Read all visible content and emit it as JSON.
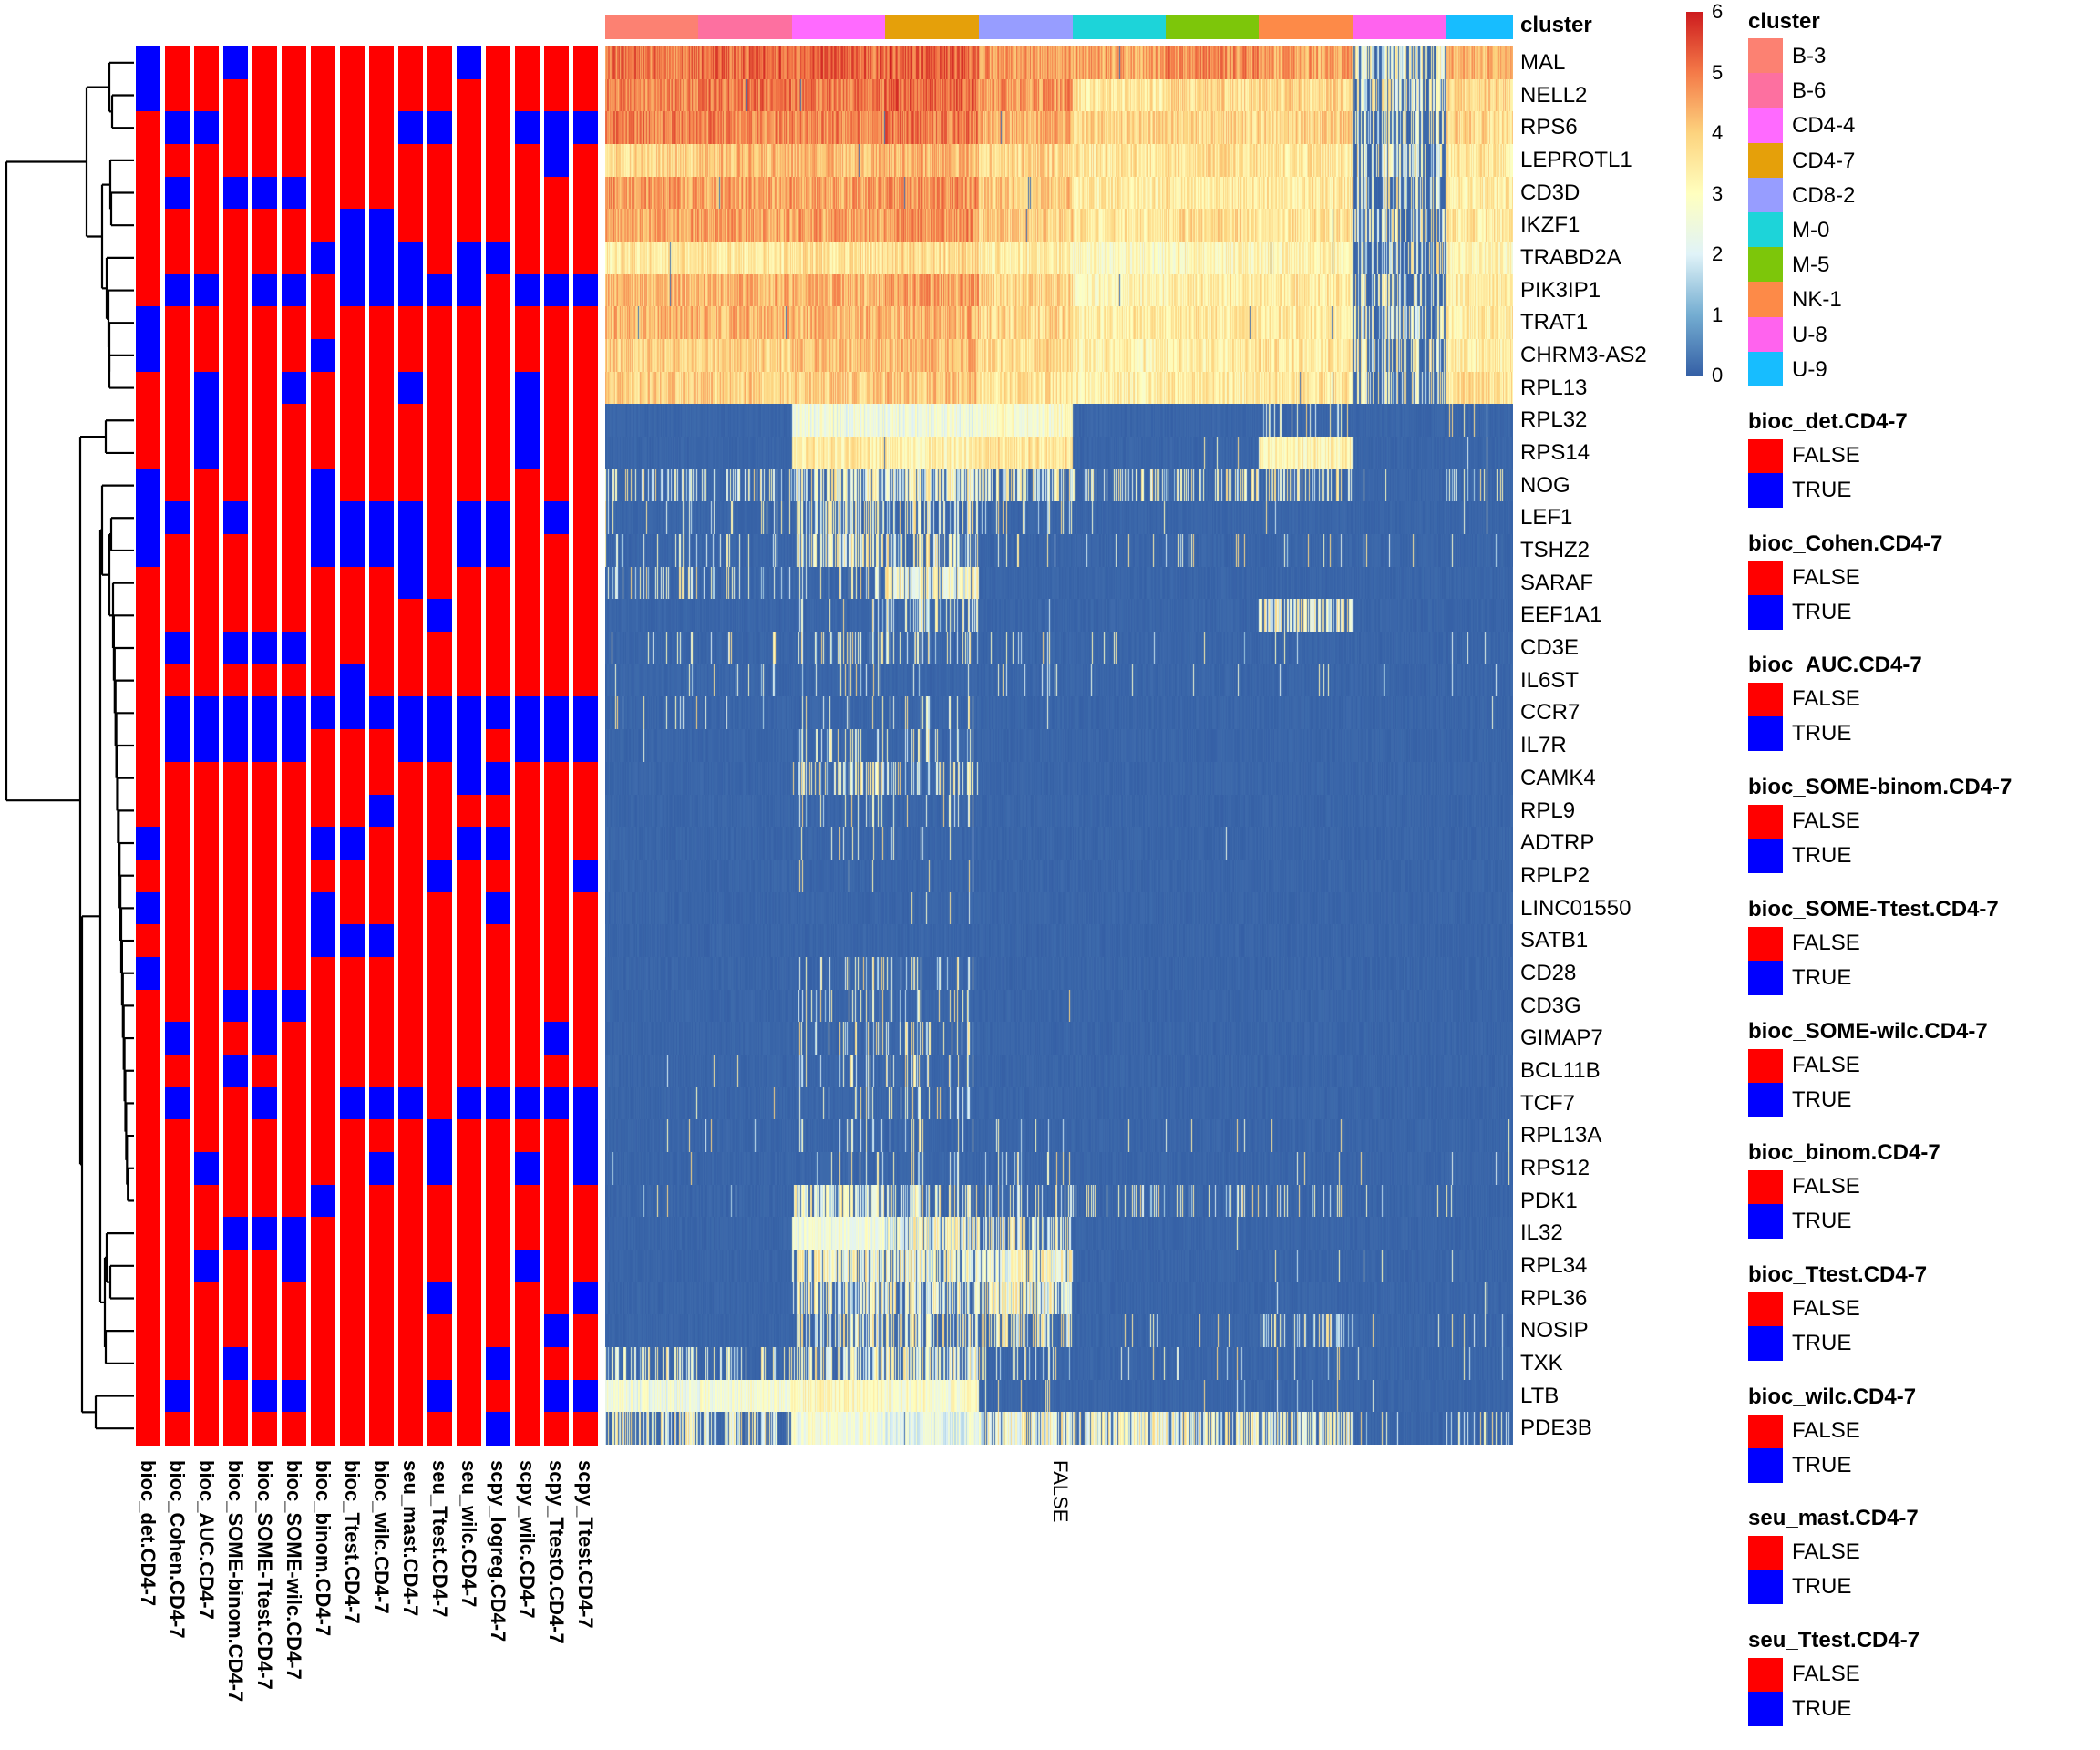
{
  "chart_data": {
    "type": "heatmap",
    "cluster_annotation_title": "cluster",
    "column_split_label": "FALSE",
    "genes": [
      "MAL",
      "NELL2",
      "RPS6",
      "LEPROTL1",
      "CD3D",
      "IKZF1",
      "TRABD2A",
      "PIK3IP1",
      "TRAT1",
      "CHRM3-AS2",
      "RPL13",
      "RPL32",
      "RPS14",
      "NOG",
      "LEF1",
      "TSHZ2",
      "SARAF",
      "EEF1A1",
      "CD3E",
      "IL6ST",
      "CCR7",
      "IL7R",
      "CAMK4",
      "RPL9",
      "ADTRP",
      "RPLP2",
      "LINC01550",
      "SATB1",
      "CD28",
      "CD3G",
      "GIMAP7",
      "BCL11B",
      "TCF7",
      "RPL13A",
      "RPS12",
      "PDK1",
      "IL32",
      "RPL34",
      "RPL36",
      "NOSIP",
      "TXK",
      "LTB",
      "PDE3B"
    ],
    "clusters": [
      {
        "name": "B-3",
        "color": "#FC8172"
      },
      {
        "name": "B-6",
        "color": "#FD70A0"
      },
      {
        "name": "CD4-4",
        "color": "#FF6AFF"
      },
      {
        "name": "CD4-7",
        "color": "#E5A00A"
      },
      {
        "name": "CD8-2",
        "color": "#979DFF"
      },
      {
        "name": "M-0",
        "color": "#1DD4D9"
      },
      {
        "name": "M-5",
        "color": "#7DC60A"
      },
      {
        "name": "NK-1",
        "color": "#FD8A48"
      },
      {
        "name": "U-8",
        "color": "#FF63EE"
      },
      {
        "name": "U-9",
        "color": "#17BDFF"
      }
    ],
    "expression_means_by_cluster": [
      [
        5.0,
        5.2,
        5.2,
        5.3,
        4.6,
        4.5,
        4.8,
        4.5,
        1.5,
        4.3
      ],
      [
        4.8,
        5.0,
        5.0,
        5.2,
        4.6,
        3.5,
        3.8,
        3.8,
        1.5,
        3.8
      ],
      [
        4.9,
        4.8,
        4.8,
        5.0,
        4.3,
        3.8,
        3.8,
        3.9,
        1.2,
        3.8
      ],
      [
        3.8,
        4.2,
        4.2,
        4.3,
        3.8,
        3.5,
        3.6,
        3.5,
        1.3,
        3.5
      ],
      [
        4.6,
        4.5,
        4.5,
        4.7,
        4.0,
        3.4,
        3.5,
        3.5,
        1.2,
        3.4
      ],
      [
        4.5,
        4.5,
        4.5,
        4.7,
        3.9,
        3.5,
        3.7,
        3.6,
        1.2,
        3.5
      ],
      [
        3.5,
        3.5,
        3.6,
        3.7,
        3.4,
        2.9,
        3.1,
        3.2,
        1.2,
        3.1
      ],
      [
        4.2,
        4.3,
        4.3,
        4.5,
        3.8,
        3.2,
        3.4,
        3.5,
        1.2,
        3.4
      ],
      [
        4.3,
        4.3,
        4.3,
        4.3,
        3.8,
        3.4,
        3.5,
        3.5,
        1.3,
        3.4
      ],
      [
        3.9,
        3.9,
        4.1,
        4.2,
        3.7,
        3.3,
        3.4,
        3.5,
        1.3,
        3.4
      ],
      [
        3.9,
        3.9,
        4.0,
        4.1,
        3.6,
        3.3,
        3.4,
        3.5,
        1.2,
        3.6
      ],
      [
        0,
        0,
        2.5,
        2.5,
        2.8,
        0,
        0,
        0.8,
        0,
        0.3
      ],
      [
        0,
        0,
        3.4,
        3.3,
        3.6,
        0,
        0.3,
        3.2,
        0,
        0.3
      ],
      [
        1.0,
        1.0,
        1.5,
        1.8,
        1.3,
        1.0,
        1.2,
        1.0,
        0.3,
        0.8
      ],
      [
        0.5,
        0.5,
        1.3,
        1.2,
        0.6,
        0.3,
        0.4,
        0.3,
        0.2,
        0.2
      ],
      [
        0.5,
        0.6,
        1.5,
        1.3,
        0.3,
        0.5,
        0.6,
        0.4,
        0.3,
        0.3
      ],
      [
        0.9,
        0.6,
        0.8,
        2.0,
        0,
        0,
        0,
        0,
        0,
        0
      ],
      [
        0,
        0,
        0.5,
        1.2,
        0.3,
        0,
        0,
        1.6,
        0,
        0.1
      ],
      [
        0.5,
        0.4,
        0.8,
        1.0,
        0.4,
        0.4,
        0.3,
        0.3,
        0.1,
        0.3
      ],
      [
        0.3,
        0.3,
        0.6,
        0.5,
        0.4,
        0.3,
        0.3,
        0.4,
        0.2,
        0.3
      ],
      [
        0.3,
        0.3,
        0.5,
        0.6,
        0.1,
        0.1,
        0.1,
        0.1,
        0,
        0.1
      ],
      [
        0.1,
        0.1,
        0.9,
        0.9,
        0.2,
        0.05,
        0.05,
        0.05,
        0,
        0.1
      ],
      [
        0.05,
        0.1,
        1.2,
        1.1,
        0,
        0,
        0,
        0,
        0,
        0
      ],
      [
        0,
        0,
        0.6,
        0.6,
        0.1,
        0,
        0,
        0,
        0,
        0
      ],
      [
        0.05,
        0.1,
        0.4,
        0.4,
        0.1,
        0.05,
        0.05,
        0.05,
        0,
        0.05
      ],
      [
        0.05,
        0.05,
        0.3,
        0.3,
        0.1,
        0.05,
        0.05,
        0.05,
        0,
        0
      ],
      [
        0,
        0,
        0.1,
        0.4,
        0,
        0,
        0,
        0,
        0,
        0
      ],
      [
        0,
        0,
        0,
        0.2,
        0,
        0,
        0,
        0,
        0,
        0
      ],
      [
        0,
        0,
        0.8,
        0.8,
        0,
        0,
        0,
        0,
        0.05,
        0
      ],
      [
        0,
        0,
        0.7,
        0.7,
        0.2,
        0,
        0,
        0,
        0.05,
        0
      ],
      [
        0.05,
        0.05,
        0.8,
        0.9,
        0.1,
        0,
        0,
        0.05,
        0.05,
        0.05
      ],
      [
        0.1,
        0.15,
        0.7,
        0.8,
        0.1,
        0.05,
        0.05,
        0.05,
        0.05,
        0.05
      ],
      [
        0.1,
        0.1,
        0.5,
        0.8,
        0,
        0,
        0,
        0,
        0,
        0
      ],
      [
        0.2,
        0.2,
        0.6,
        0.6,
        0.4,
        0.3,
        0.3,
        0.4,
        0.2,
        0.3
      ],
      [
        0.1,
        0.1,
        0.6,
        0.6,
        0.5,
        0.1,
        0.1,
        0.3,
        0.1,
        0.2
      ],
      [
        0.4,
        0.4,
        1.6,
        1.2,
        0.8,
        0.8,
        0.8,
        0.6,
        0.3,
        0.3
      ],
      [
        0.1,
        0.1,
        2.5,
        2.0,
        1.3,
        0.1,
        0.1,
        0.1,
        0.1,
        0.1
      ],
      [
        0.05,
        0.05,
        1.8,
        1.8,
        2.0,
        0,
        0,
        0.3,
        0.2,
        0.2
      ],
      [
        0,
        0,
        1.6,
        1.5,
        1.7,
        0,
        0,
        0.2,
        0.1,
        0.2
      ],
      [
        0,
        0,
        1.3,
        1.2,
        1.2,
        0.3,
        0.4,
        1.0,
        0.2,
        0.3
      ],
      [
        1.0,
        0.9,
        1.5,
        1.6,
        0.8,
        0.5,
        0.6,
        0.4,
        0.3,
        0.5
      ],
      [
        2.5,
        2.6,
        3.0,
        2.8,
        0.3,
        0.2,
        0.2,
        0.3,
        0.2,
        0.2
      ],
      [
        1.3,
        1.3,
        2.6,
        2.3,
        1.8,
        1.7,
        1.5,
        1.6,
        0.4,
        0.8
      ]
    ],
    "color_scale": {
      "min": 0,
      "max": 6,
      "ticks": [
        "0",
        "1",
        "2",
        "3",
        "4",
        "5",
        "6"
      ],
      "stops": [
        [
          0,
          "#3560A6"
        ],
        [
          1,
          "#74ADD1"
        ],
        [
          2,
          "#E0F3F8"
        ],
        [
          3,
          "#FFFFBF"
        ],
        [
          4,
          "#FDD37E"
        ],
        [
          5,
          "#F47A48"
        ],
        [
          6,
          "#CD1B1E"
        ]
      ]
    },
    "row_annotations": [
      {
        "name": "bioc_det.CD4-7",
        "true_rows": [
          0,
          1,
          8,
          9,
          13,
          14,
          15,
          24,
          26,
          28
        ]
      },
      {
        "name": "bioc_Cohen.CD4-7",
        "true_rows": [
          2,
          4,
          7,
          14,
          18,
          20,
          21,
          30,
          32,
          41
        ]
      },
      {
        "name": "bioc_AUC.CD4-7",
        "true_rows": [
          2,
          7,
          10,
          11,
          12,
          20,
          21,
          34,
          37
        ]
      },
      {
        "name": "bioc_SOME-binom.CD4-7",
        "true_rows": [
          0,
          4,
          14,
          18,
          20,
          21,
          29,
          31,
          36,
          40
        ]
      },
      {
        "name": "bioc_SOME-Ttest.CD4-7",
        "true_rows": [
          4,
          7,
          18,
          20,
          21,
          29,
          30,
          32,
          36,
          41
        ]
      },
      {
        "name": "bioc_SOME-wilc.CD4-7",
        "true_rows": [
          4,
          7,
          10,
          18,
          20,
          21,
          29,
          36,
          37,
          41
        ]
      },
      {
        "name": "bioc_binom.CD4-7",
        "true_rows": [
          6,
          9,
          13,
          14,
          15,
          20,
          24,
          26,
          27,
          35
        ]
      },
      {
        "name": "bioc_Ttest.CD4-7",
        "true_rows": [
          5,
          6,
          7,
          14,
          15,
          19,
          20,
          24,
          27,
          32
        ]
      },
      {
        "name": "bioc_wilc.CD4-7",
        "true_rows": [
          5,
          6,
          7,
          14,
          15,
          20,
          23,
          27,
          32,
          34
        ]
      },
      {
        "name": "seu_mast.CD4-7",
        "true_rows": [
          2,
          6,
          7,
          10,
          14,
          15,
          16,
          20,
          21,
          32
        ]
      },
      {
        "name": "seu_Ttest.CD4-7",
        "true_rows": [
          2,
          7,
          17,
          20,
          21,
          25,
          33,
          34,
          38,
          41
        ]
      },
      {
        "name": "seu_wilc.CD4-7",
        "true_rows": [
          0,
          6,
          7,
          14,
          15,
          20,
          21,
          22,
          24,
          32
        ]
      },
      {
        "name": "scpy_logreg.CD4-7",
        "true_rows": [
          6,
          14,
          15,
          20,
          22,
          24,
          26,
          32,
          40,
          42
        ]
      },
      {
        "name": "scpy_wilc.CD4-7",
        "true_rows": [
          2,
          7,
          10,
          11,
          12,
          20,
          21,
          32,
          34,
          37
        ]
      },
      {
        "name": "scpy_TtestO.CD4-7",
        "true_rows": [
          2,
          3,
          7,
          14,
          20,
          21,
          30,
          32,
          39,
          41
        ]
      },
      {
        "name": "scpy_Ttest.CD4-7",
        "true_rows": [
          2,
          7,
          20,
          21,
          25,
          32,
          33,
          34,
          38,
          41
        ]
      }
    ],
    "boolean_colors": {
      "FALSE": "#FF0000",
      "TRUE": "#0000FF"
    },
    "legends": {
      "cluster_title": "cluster",
      "false_label": "FALSE",
      "true_label": "TRUE",
      "boolean_legend_titles": [
        "bioc_det.CD4-7",
        "bioc_Cohen.CD4-7",
        "bioc_AUC.CD4-7",
        "bioc_SOME-binom.CD4-7",
        "bioc_SOME-Ttest.CD4-7",
        "bioc_SOME-wilc.CD4-7",
        "bioc_binom.CD4-7",
        "bioc_Ttest.CD4-7",
        "bioc_wilc.CD4-7",
        "seu_mast.CD4-7",
        "seu_Ttest.CD4-7"
      ]
    }
  }
}
